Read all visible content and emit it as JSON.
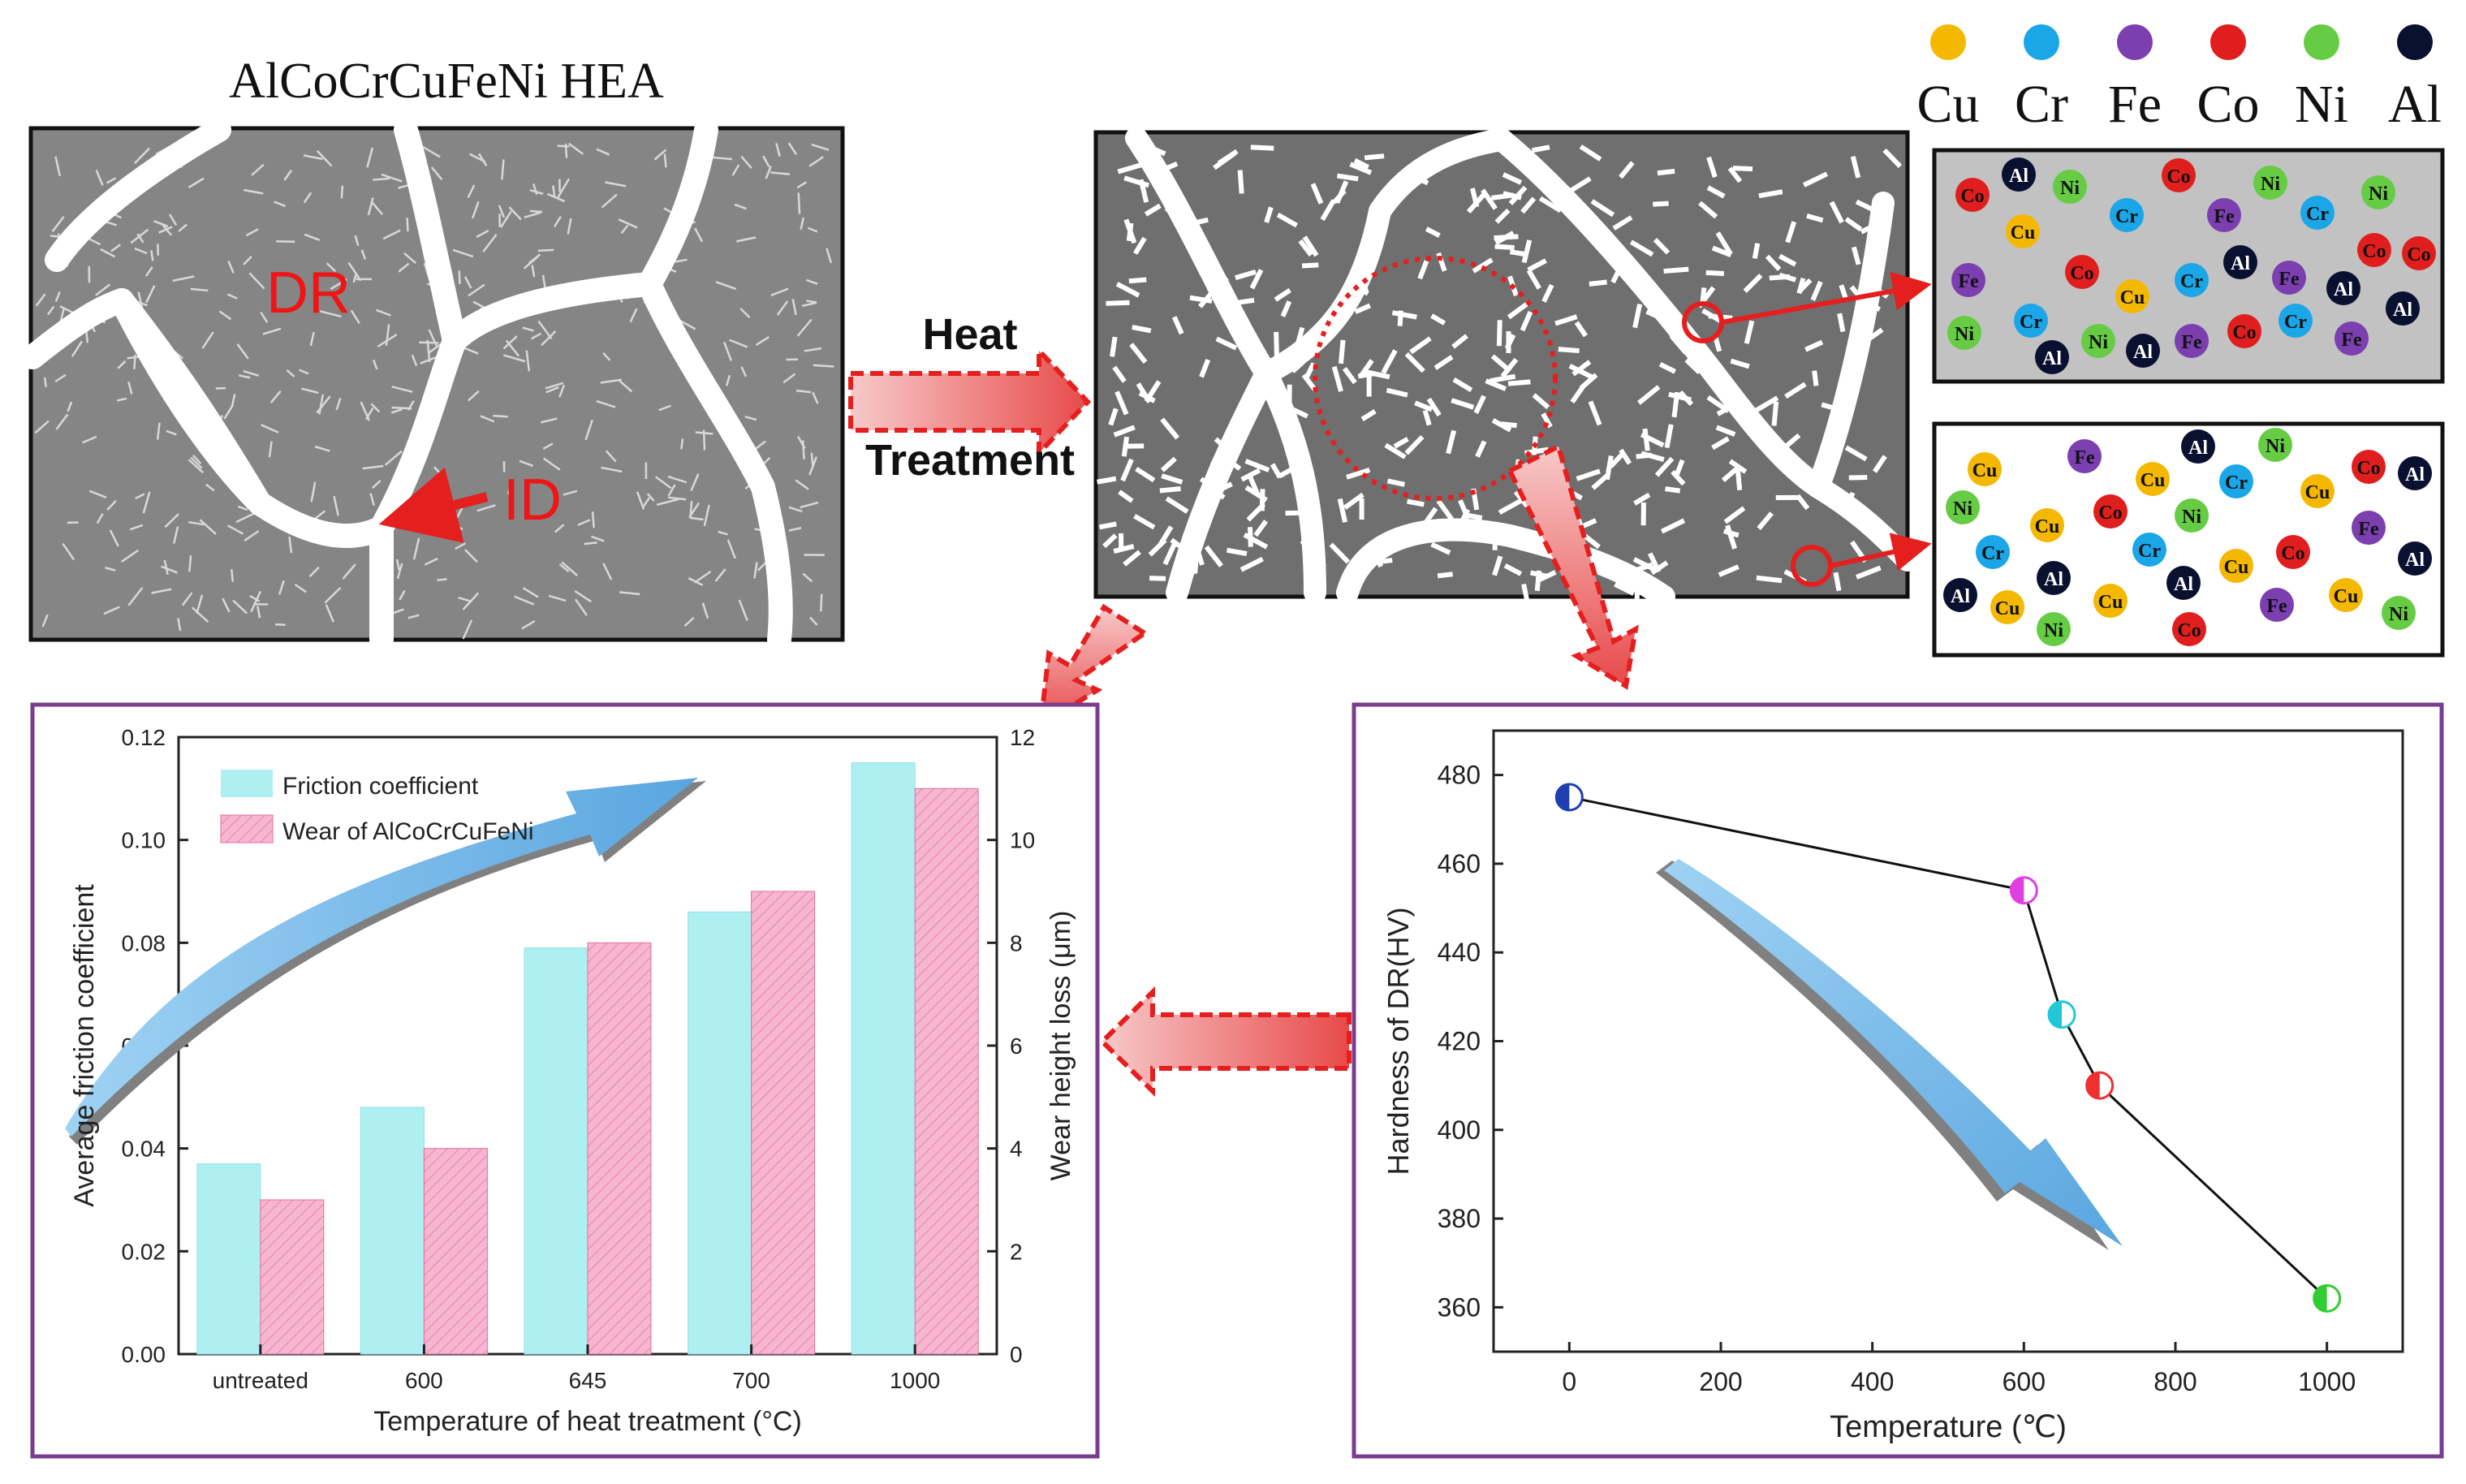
{
  "schematic": {
    "title": "AlCoCrCuFeNi HEA",
    "dr_label": "DR",
    "id_label": "ID",
    "heat_label_1": "Heat",
    "heat_label_2": "Treatment"
  },
  "legend": {
    "elements": [
      {
        "symbol": "Cu",
        "color": "#f5b800"
      },
      {
        "symbol": "Cr",
        "color": "#1ba6e8"
      },
      {
        "symbol": "Fe",
        "color": "#7b3fb0"
      },
      {
        "symbol": "Co",
        "color": "#e01e1e"
      },
      {
        "symbol": "Ni",
        "color": "#66cc44"
      },
      {
        "symbol": "Al",
        "color": "#0a1030"
      }
    ]
  },
  "atoms_box_1": [
    "Co",
    "Al",
    "Ni",
    "Ni",
    "Ni",
    "Cr",
    "Co",
    "Fe",
    "Cr",
    "Cu",
    "Co",
    "Fe",
    "Co",
    "Cu",
    "Cr",
    "Al",
    "Fe",
    "Al",
    "Co",
    "Ni",
    "Cr",
    "Al",
    "Ni",
    "Al",
    "Fe",
    "Co",
    "Cr",
    "Fe",
    "Al"
  ],
  "atoms_box_2": [
    "Cu",
    "Fe",
    "Al",
    "Ni",
    "Cu",
    "Cr",
    "Cu",
    "Co",
    "Al",
    "Ni",
    "Cu",
    "Co",
    "Ni",
    "Fe",
    "Cr",
    "Cr",
    "Cu",
    "Co",
    "Al",
    "Al",
    "Cu",
    "Al",
    "Cu",
    "Al",
    "Fe",
    "Cu",
    "Ni",
    "Ni",
    "Co"
  ],
  "chart_left": {
    "type": "bar",
    "categories": [
      "untreated",
      "600",
      "645",
      "700",
      "1000"
    ],
    "series": [
      {
        "name": "Friction coefficient",
        "values": [
          0.037,
          0.048,
          0.079,
          0.086,
          0.115
        ],
        "color": "#aef0f2",
        "axis": "left"
      },
      {
        "name": "Wear of AlCoCrCuFeNi",
        "values": [
          3.0,
          4.0,
          8.0,
          9.0,
          11.0
        ],
        "color": "#f7b6cf",
        "axis": "right"
      }
    ],
    "xlabel": "Temperature of heat treatment (°C)",
    "ylabel": "Average friction coefficient",
    "ylabel_right": "Wear height loss (μm)",
    "ylim": [
      0,
      0.12
    ],
    "ylim_right": [
      0,
      12
    ],
    "yticks": [
      "0.00",
      "0.02",
      "0.04",
      "0.06",
      "0.08",
      "0.10",
      "0.12"
    ],
    "yticks_right": [
      "0",
      "2",
      "4",
      "6",
      "8",
      "10",
      "12"
    ],
    "legend_position": "top-left"
  },
  "chart_right": {
    "type": "line",
    "x": [
      0,
      600,
      650,
      700,
      1000
    ],
    "y": [
      475,
      454,
      426,
      410,
      362
    ],
    "marker_colors": [
      "#1f3fb0",
      "#e040e0",
      "#22c8d8",
      "#f03030",
      "#33cc33"
    ],
    "xlabel": "Temperature (℃)",
    "ylabel": "Hardness of DR(HV)",
    "xlim": [
      -100,
      1100
    ],
    "ylim": [
      350,
      490
    ],
    "xticks": [
      "0",
      "200",
      "400",
      "600",
      "800",
      "1000"
    ],
    "yticks": [
      "360",
      "380",
      "400",
      "420",
      "440",
      "460",
      "480"
    ]
  },
  "chart_data": [
    {
      "type": "bar",
      "categories": [
        "untreated",
        "600",
        "645",
        "700",
        "1000"
      ],
      "series": [
        {
          "name": "Friction coefficient",
          "values": [
            0.037,
            0.048,
            0.079,
            0.086,
            0.115
          ]
        },
        {
          "name": "Wear of AlCoCrCuFeNi",
          "values": [
            3.0,
            4.0,
            8.0,
            9.0,
            11.0
          ]
        }
      ],
      "xlabel": "Temperature of heat treatment (°C)",
      "ylabel": "Average friction coefficient",
      "ylabel_right": "Wear height loss (μm)",
      "ylim": [
        0,
        0.12
      ],
      "ylim_right": [
        0,
        12
      ]
    },
    {
      "type": "line",
      "x": [
        0,
        600,
        650,
        700,
        1000
      ],
      "y": [
        475,
        454,
        426,
        410,
        362
      ],
      "xlabel": "Temperature (℃)",
      "ylabel": "Hardness of DR(HV)",
      "xlim": [
        -100,
        1100
      ],
      "ylim": [
        350,
        490
      ]
    }
  ]
}
